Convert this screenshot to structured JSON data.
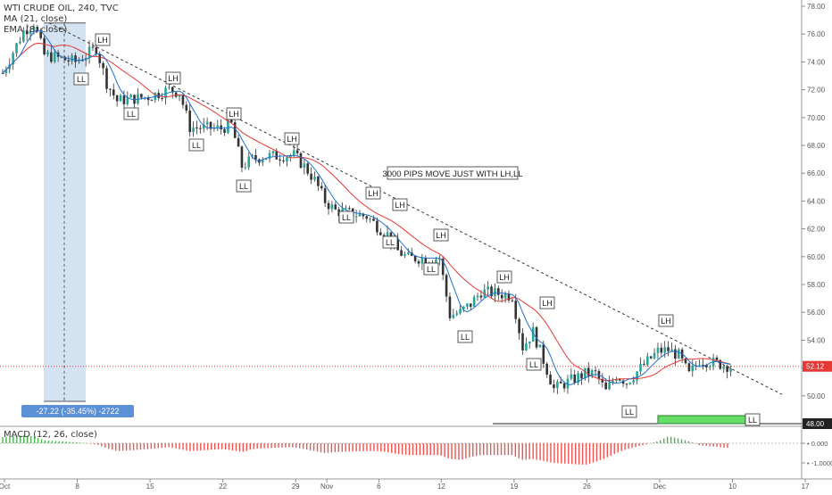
{
  "header": {
    "symbol": "WTI CRUDE OIL, 240, TVC",
    "ma": "MA (21, close)",
    "ema": "EMA (8, close)",
    "macd": "MACD (12, 26, close)"
  },
  "annotation": {
    "headline": "3000 PIPS MOVE JUST WITH LH,LL",
    "range_label": "-27.22 (-35.45%) -2722",
    "current_price": "52.12",
    "support_price": "48.00",
    "lh": "LH",
    "ll": "LL"
  },
  "colors": {
    "up": "#26a69a",
    "down": "#333333",
    "ma": "#e53935",
    "ema": "#1e6fd1",
    "macd_neg": "#ef5350",
    "macd_pos": "#4caf50",
    "range": "#c5d9ee",
    "support_box": "#66dd66"
  },
  "chart_data": [
    {
      "type": "line",
      "ylim": [
        48,
        78
      ],
      "y_ticks": [
        "48.00",
        "50.00",
        "52.00",
        "54.00",
        "56.00",
        "58.00",
        "60.00",
        "62.00",
        "64.00",
        "66.00",
        "68.00",
        "70.00",
        "72.00",
        "74.00",
        "76.00",
        "78.00"
      ],
      "x_ticks": [
        "Oct",
        "8",
        "15",
        "22",
        "29",
        "Nov",
        "6",
        "12",
        "19",
        "26",
        "Dec",
        "10",
        "17"
      ],
      "series": [
        {
          "name": "WTI CRUDE OIL",
          "values": [
            {
              "x": "Oct 1",
              "y": 73.2
            },
            {
              "x": "Oct 3",
              "y": 76.2
            },
            {
              "x": "Oct 4",
              "y": 76.8
            },
            {
              "x": "Oct 5",
              "y": 74.5
            },
            {
              "x": "Oct 8",
              "y": 74.0
            },
            {
              "x": "Oct 10",
              "y": 75.0
            },
            {
              "x": "Oct 11",
              "y": 72.5
            },
            {
              "x": "Oct 12",
              "y": 71.2
            },
            {
              "x": "Oct 15",
              "y": 71.5
            },
            {
              "x": "Oct 17",
              "y": 72.0
            },
            {
              "x": "Oct 18",
              "y": 71.8
            },
            {
              "x": "Oct 19",
              "y": 69.3
            },
            {
              "x": "Oct 22",
              "y": 69.2
            },
            {
              "x": "Oct 23",
              "y": 69.5
            },
            {
              "x": "Oct 24",
              "y": 66.5
            },
            {
              "x": "Oct 25",
              "y": 67.0
            },
            {
              "x": "Oct 26",
              "y": 67.2
            },
            {
              "x": "Oct 29",
              "y": 67.3
            },
            {
              "x": "Oct 30",
              "y": 66.5
            },
            {
              "x": "Oct 31",
              "y": 65.5
            },
            {
              "x": "Nov 1",
              "y": 64.0
            },
            {
              "x": "Nov 2",
              "y": 63.3
            },
            {
              "x": "Nov 5",
              "y": 62.9
            },
            {
              "x": "Nov 6",
              "y": 62.2
            },
            {
              "x": "Nov 7",
              "y": 61.6
            },
            {
              "x": "Nov 8",
              "y": 60.4
            },
            {
              "x": "Nov 9",
              "y": 59.9
            },
            {
              "x": "Nov 12",
              "y": 59.9
            },
            {
              "x": "Nov 13",
              "y": 55.8
            },
            {
              "x": "Nov 14",
              "y": 56.0
            },
            {
              "x": "Nov 15",
              "y": 56.6
            },
            {
              "x": "Nov 16",
              "y": 57.5
            },
            {
              "x": "Nov 19",
              "y": 57.2
            },
            {
              "x": "Nov 20",
              "y": 53.5
            },
            {
              "x": "Nov 21",
              "y": 54.6
            },
            {
              "x": "Nov 23",
              "y": 50.5
            },
            {
              "x": "Nov 26",
              "y": 51.6
            },
            {
              "x": "Nov 27",
              "y": 51.6
            },
            {
              "x": "Nov 28",
              "y": 50.3
            },
            {
              "x": "Nov 29",
              "y": 51.5
            },
            {
              "x": "Nov 30",
              "y": 51.0
            },
            {
              "x": "Dec 3",
              "y": 53.2
            },
            {
              "x": "Dec 4",
              "y": 53.3
            },
            {
              "x": "Dec 5",
              "y": 52.9
            },
            {
              "x": "Dec 6",
              "y": 51.5
            },
            {
              "x": "Dec 7",
              "y": 52.6
            },
            {
              "x": "Dec 10",
              "y": 52.12
            }
          ]
        }
      ],
      "annotations": [
        "LH",
        "LL",
        "3000 PIPS MOVE JUST WITH LH,LL",
        "-27.22 (-35.45%) -2722"
      ],
      "grid": false
    },
    {
      "type": "bar",
      "title": "MACD (12, 26, close)",
      "ylim": [
        -1.3,
        0.45
      ],
      "y_ticks": [
        "0.000",
        "-1.0000"
      ],
      "series": [
        {
          "name": "MACD",
          "values": [
            0.32,
            0.4,
            0.35,
            0.15,
            0.05,
            -0.05,
            -0.25,
            -0.4,
            -0.3,
            -0.2,
            -0.3,
            -0.4,
            -0.3,
            -0.35,
            -0.45,
            -0.3,
            -0.25,
            -0.2,
            -0.3,
            -0.4,
            -0.5,
            -0.45,
            -0.4,
            -0.4,
            -0.45,
            -0.55,
            -0.6,
            -0.6,
            -0.8,
            -0.85,
            -0.7,
            -0.6,
            -0.6,
            -0.85,
            -0.8,
            -1.0,
            -1.1,
            -0.95,
            -0.75,
            -0.5,
            -0.3,
            0.1,
            0.35,
            0.25,
            0.1,
            -0.1,
            -0.25
          ]
        }
      ]
    }
  ]
}
